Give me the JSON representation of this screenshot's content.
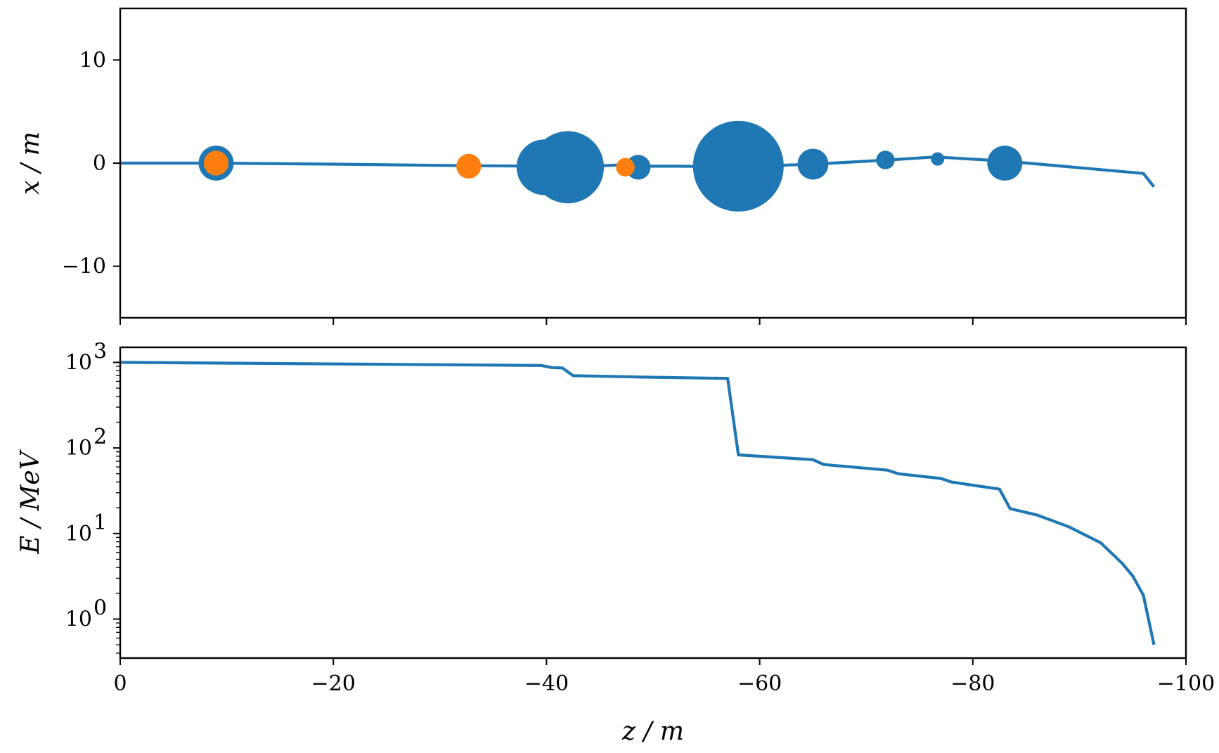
{
  "chart_data": [
    {
      "type": "line",
      "panel": "top",
      "xlabel": "z / m",
      "ylabel": "x / m",
      "xlim": [
        0,
        -100
      ],
      "ylim": [
        -15,
        15
      ],
      "xticks": [
        0,
        -20,
        -40,
        -60,
        -80,
        -100
      ],
      "xtick_labels": [
        "",
        "",
        "",
        "",
        "",
        ""
      ],
      "yticks": [
        10,
        0,
        -10
      ],
      "ytick_labels": [
        "10",
        "0",
        "−10"
      ],
      "grid": false,
      "colors": {
        "line": "#1f77b4",
        "secondary": "#ff7f0e"
      },
      "series": [
        {
          "values": [
            [
              0,
              0
            ],
            [
              -9,
              0
            ],
            [
              -20,
              -0.1
            ],
            [
              -33,
              -0.25
            ],
            [
              -40,
              -0.3
            ],
            [
              -44,
              -0.3
            ],
            [
              -46.5,
              -0.2
            ],
            [
              -48,
              -0.3
            ],
            [
              -52,
              -0.3
            ],
            [
              -58,
              -0.35
            ],
            [
              -65,
              -0.1
            ],
            [
              -72,
              0.3
            ],
            [
              -76.5,
              0.6
            ],
            [
              -83,
              0.2
            ],
            [
              -96,
              -1.0
            ],
            [
              -97,
              -2.3
            ]
          ]
        }
      ],
      "markers": [
        {
          "x": -9,
          "y": 0,
          "size": 1.7,
          "color": "#1f77b4"
        },
        {
          "x": -9,
          "y": 0,
          "size": 1.2,
          "color": "#ff7f0e"
        },
        {
          "x": -32.7,
          "y": -0.3,
          "size": 1.2,
          "color": "#ff7f0e"
        },
        {
          "x": -39.8,
          "y": -0.4,
          "size": 2.7,
          "color": "#1f77b4"
        },
        {
          "x": -42,
          "y": -0.4,
          "size": 3.5,
          "color": "#1f77b4"
        },
        {
          "x": -47.4,
          "y": -0.4,
          "size": 0.9,
          "color": "#ff7f0e"
        },
        {
          "x": -48.6,
          "y": -0.4,
          "size": 1.2,
          "color": "#1f77b4"
        },
        {
          "x": -58,
          "y": -0.3,
          "size": 4.4,
          "color": "#1f77b4"
        },
        {
          "x": -65,
          "y": -0.1,
          "size": 1.5,
          "color": "#1f77b4"
        },
        {
          "x": -71.8,
          "y": 0.3,
          "size": 0.9,
          "color": "#1f77b4"
        },
        {
          "x": -76.7,
          "y": 0.4,
          "size": 0.65,
          "color": "#1f77b4"
        },
        {
          "x": -83,
          "y": 0,
          "size": 1.7,
          "color": "#1f77b4"
        }
      ]
    },
    {
      "type": "line",
      "panel": "bottom",
      "xlabel": "z / m",
      "ylabel": "E / MeV",
      "xlim": [
        0,
        -100
      ],
      "ylim": [
        0.35,
        1500
      ],
      "yscale": "log",
      "xticks": [
        0,
        -20,
        -40,
        -60,
        -80,
        -100
      ],
      "xtick_labels": [
        "0",
        "−20",
        "−40",
        "−60",
        "−80",
        "−100"
      ],
      "yticks": [
        1,
        10,
        100,
        1000
      ],
      "grid": false,
      "colors": {
        "line": "#1f77b4"
      },
      "series": [
        {
          "values": [
            [
              0,
              1000
            ],
            [
              -10,
              980
            ],
            [
              -39.5,
              920
            ],
            [
              -40.5,
              870
            ],
            [
              -41.5,
              860
            ],
            [
              -42.5,
              700
            ],
            [
              -50,
              670
            ],
            [
              -57,
              650
            ],
            [
              -58,
              83
            ],
            [
              -65,
              73
            ],
            [
              -66,
              64
            ],
            [
              -72,
              55
            ],
            [
              -73,
              50
            ],
            [
              -77,
              44
            ],
            [
              -78,
              40
            ],
            [
              -82.5,
              33
            ],
            [
              -83.5,
              19.5
            ],
            [
              -86,
              16.5
            ],
            [
              -89,
              12
            ],
            [
              -92,
              7.8
            ],
            [
              -94,
              4.5
            ],
            [
              -95,
              3.2
            ],
            [
              -96,
              1.9
            ],
            [
              -97,
              0.5
            ]
          ]
        }
      ]
    }
  ]
}
